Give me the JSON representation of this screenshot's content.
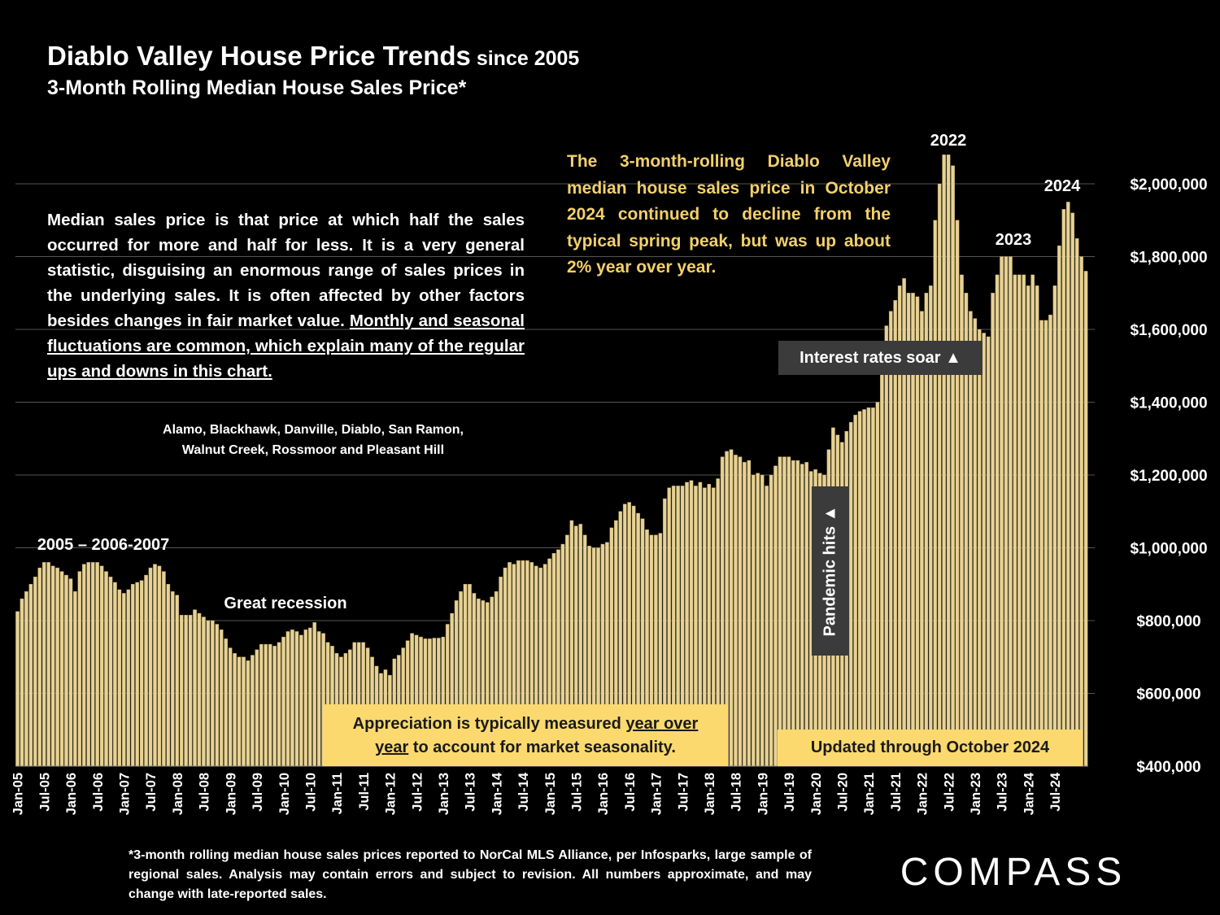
{
  "header": {
    "title_main": "Diablo Valley House Price Trends",
    "title_since": " since 2005",
    "subtitle": "3-Month Rolling Median House Sales Price*"
  },
  "note": {
    "part1": "Median sales price is that price at which half the sales occurred for more and half for less. It is a very general statistic, disguising an enormous range of sales prices in the underlying sales. It is often affected by other factors besides changes in fair market value. ",
    "underlined": "Monthly and seasonal fluctuations are common, which explain many of the regular ups and downs in this chart."
  },
  "areas": {
    "line1": "Alamo, Blackhawk, Danville, Diablo, San Ramon,",
    "line2": "Walnut Creek, Rossmoor and Pleasant Hill"
  },
  "callout": "The 3-month-rolling Diablo Valley median house sales price in October 2024 continued to decline from the typical spring peak, but was up about 2% year over year.",
  "boxes": {
    "appreciation_a": "Appreciation is typically measured ",
    "appreciation_u1": "year over",
    "appreciation_u2": "year",
    "appreciation_b": " to account for market seasonality.",
    "updated": "Updated through October 2024",
    "rates": "Interest rates soar ▲",
    "pandemic": "Pandemic hits ▲"
  },
  "footnote": "*3-month rolling median house sales prices reported to NorCal MLS Alliance, per Infosparks, large sample of regional sales. Analysis may contain errors and subject to revision. All numbers approximate, and may change with late-reported sales.",
  "logo_text": "COMPASS",
  "colors": {
    "bar": "#e7d295",
    "bar_edge": "#a8965c",
    "grid": "#555555",
    "highlight_box": "#fbd96e",
    "callout_text": "#f2d06b",
    "dark_box": "#3b3b3b"
  },
  "chart_data": {
    "type": "bar",
    "start": "Jan-05",
    "ylim": [
      400000,
      2000000
    ],
    "yticks": [
      "$400,000",
      "$600,000",
      "$800,000",
      "$1,000,000",
      "$1,200,000",
      "$1,400,000",
      "$1,600,000",
      "$1,800,000",
      "$2,000,000"
    ],
    "xticks": [
      "Jan-05",
      "Jul-05",
      "Jan-06",
      "Jul-06",
      "Jan-07",
      "Jul-07",
      "Jan-08",
      "Jul-08",
      "Jan-09",
      "Jul-09",
      "Jan-10",
      "Jul-10",
      "Jan-11",
      "Jul-11",
      "Jan-12",
      "Jul-12",
      "Jan-13",
      "Jul-13",
      "Jan-14",
      "Jul-14",
      "Jan-15",
      "Jul-15",
      "Jan-16",
      "Jul-16",
      "Jan-17",
      "Jul-17",
      "Jan-18",
      "Jul-18",
      "Jan-19",
      "Jul-19",
      "Jan-20",
      "Jul-20",
      "Jan-21",
      "Jul-21",
      "Jan-22",
      "Jul-22",
      "Jan-23",
      "Jul-23",
      "Jan-24",
      "Jul-24"
    ],
    "values": [
      825000,
      860000,
      880000,
      900000,
      920000,
      945000,
      960000,
      960000,
      950000,
      945000,
      935000,
      925000,
      915000,
      880000,
      935000,
      955000,
      960000,
      960000,
      960000,
      950000,
      935000,
      920000,
      905000,
      885000,
      875000,
      885000,
      900000,
      905000,
      910000,
      925000,
      945000,
      955000,
      950000,
      935000,
      900000,
      880000,
      870000,
      815000,
      815000,
      815000,
      830000,
      820000,
      810000,
      800000,
      800000,
      790000,
      775000,
      750000,
      725000,
      710000,
      700000,
      700000,
      690000,
      705000,
      720000,
      735000,
      735000,
      735000,
      730000,
      740000,
      755000,
      770000,
      775000,
      770000,
      760000,
      775000,
      780000,
      795000,
      770000,
      765000,
      740000,
      730000,
      710000,
      700000,
      710000,
      720000,
      740000,
      740000,
      740000,
      725000,
      700000,
      675000,
      655000,
      665000,
      650000,
      695000,
      705000,
      725000,
      745000,
      765000,
      760000,
      755000,
      750000,
      750000,
      752000,
      752000,
      755000,
      790000,
      820000,
      855000,
      880000,
      900000,
      900000,
      875000,
      860000,
      855000,
      850000,
      865000,
      880000,
      920000,
      945000,
      960000,
      955000,
      965000,
      965000,
      965000,
      960000,
      950000,
      945000,
      955000,
      970000,
      985000,
      995000,
      1010000,
      1035000,
      1075000,
      1060000,
      1065000,
      1035000,
      1005000,
      1000000,
      1000000,
      1010000,
      1015000,
      1055000,
      1075000,
      1100000,
      1120000,
      1125000,
      1115000,
      1095000,
      1080000,
      1050000,
      1035000,
      1035000,
      1040000,
      1135000,
      1165000,
      1170000,
      1170000,
      1170000,
      1180000,
      1185000,
      1170000,
      1180000,
      1165000,
      1175000,
      1165000,
      1190000,
      1250000,
      1265000,
      1270000,
      1255000,
      1250000,
      1235000,
      1240000,
      1200000,
      1205000,
      1200000,
      1170000,
      1200000,
      1225000,
      1250000,
      1250000,
      1250000,
      1240000,
      1240000,
      1230000,
      1235000,
      1210000,
      1215000,
      1205000,
      1200000,
      1270000,
      1330000,
      1310000,
      1290000,
      1320000,
      1345000,
      1365000,
      1375000,
      1380000,
      1385000,
      1385000,
      1400000,
      1530000,
      1610000,
      1650000,
      1680000,
      1720000,
      1740000,
      1700000,
      1700000,
      1690000,
      1650000,
      1700000,
      1720000,
      1900000,
      2000000,
      2080000,
      2080000,
      2050000,
      1900000,
      1750000,
      1700000,
      1650000,
      1630000,
      1600000,
      1590000,
      1580000,
      1700000,
      1750000,
      1800000,
      1800000,
      1800000,
      1750000,
      1750000,
      1750000,
      1720000,
      1750000,
      1720000,
      1625000,
      1625000,
      1640000,
      1720000,
      1830000,
      1930000,
      1950000,
      1920000,
      1850000,
      1800000,
      1760000
    ],
    "annotations": [
      "2005 – 2006-2007",
      "Great recession",
      "2022",
      "2023",
      "2024"
    ]
  }
}
